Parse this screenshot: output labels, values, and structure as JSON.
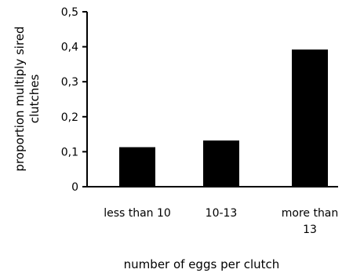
{
  "chart_data": {
    "type": "bar",
    "categories": [
      [
        "less than 10"
      ],
      [
        "10-13"
      ],
      [
        "more than",
        "13"
      ]
    ],
    "values": [
      0.113,
      0.132,
      0.392
    ],
    "xlabel": "number of eggs per clutch",
    "ylabel_lines": [
      "proportion multiply sired",
      "clutches"
    ],
    "ylim": [
      0,
      0.5
    ],
    "yticks": [
      0,
      0.1,
      0.2,
      0.3,
      0.4,
      0.5
    ],
    "ytick_labels": [
      "0",
      "0,1",
      "0,2",
      "0,3",
      "0,4",
      "0,5"
    ],
    "grid": false,
    "bar_color": "#000000"
  }
}
